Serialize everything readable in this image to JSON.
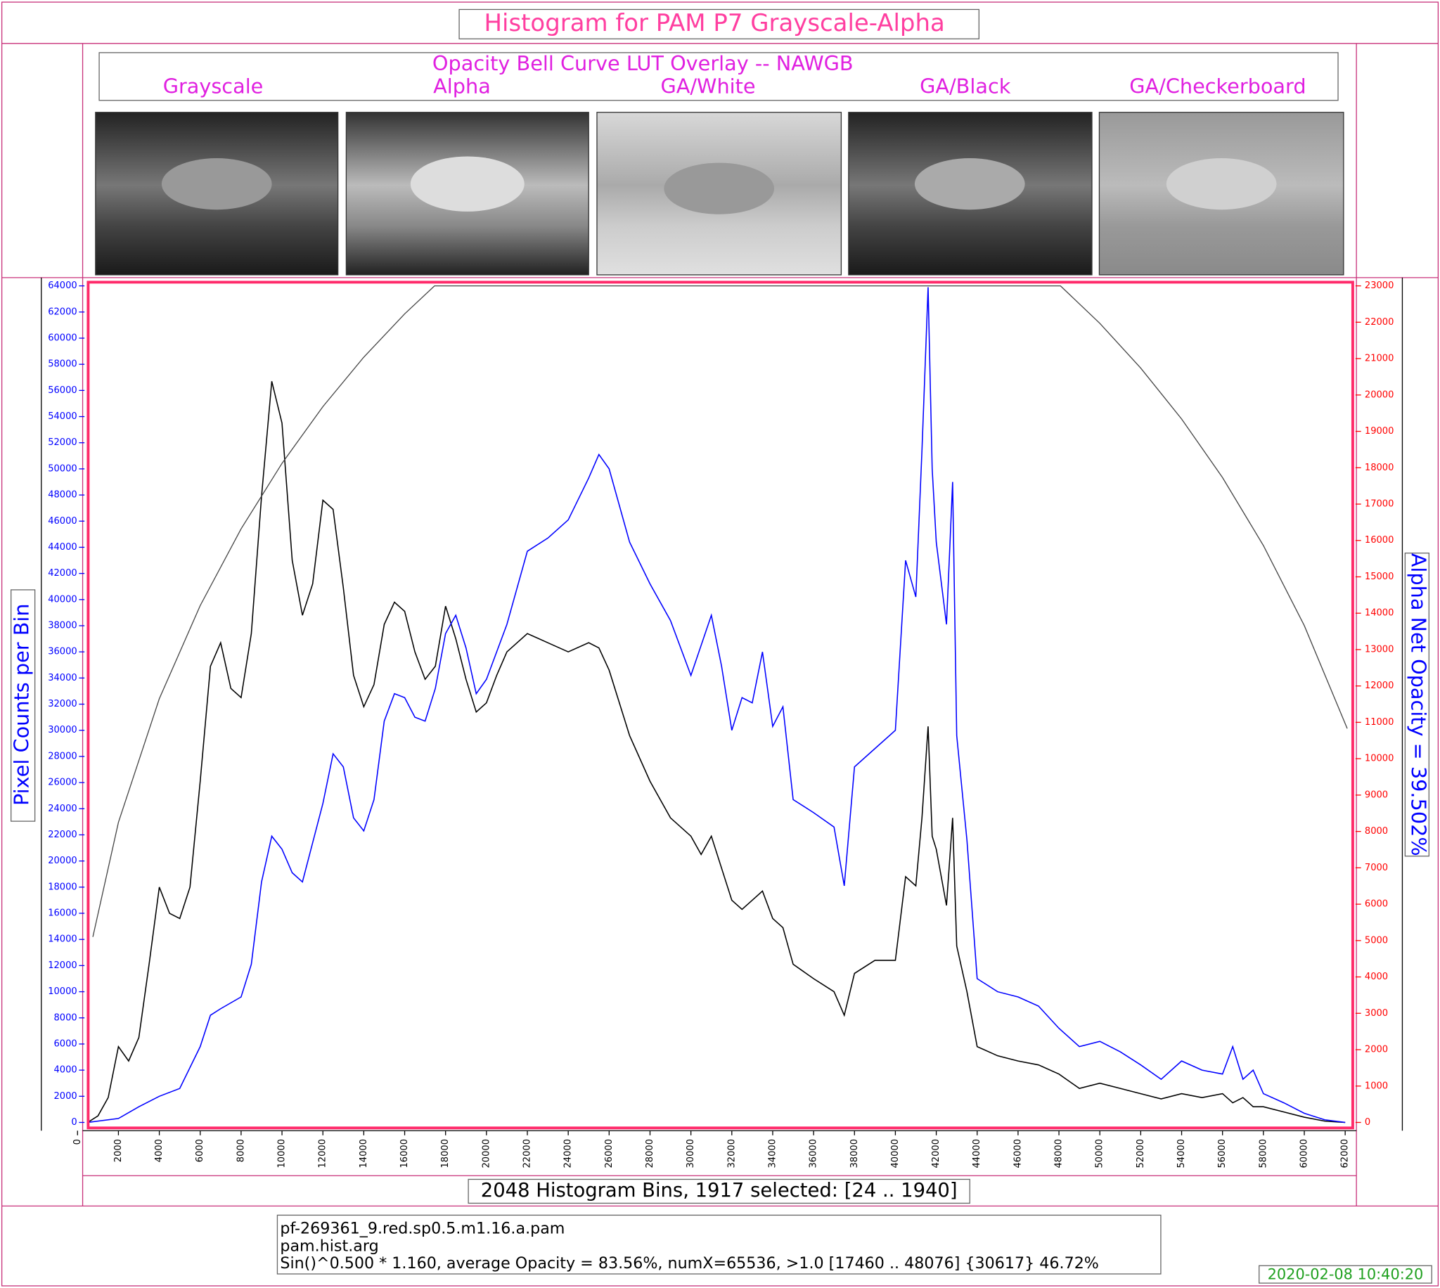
{
  "overlay": {
    "subtitle": "Opacity Bell Curve LUT Overlay -- NAWGB",
    "panels": [
      "Grayscale",
      "Alpha",
      "GA/White",
      "GA/Black",
      "GA/Checkerboard"
    ]
  },
  "info": {
    "lines": [
      "pf-269361_9.red.sp0.5.m1.16.a.pam",
      "pam.hist.arg",
      "Sin()^0.500 * 1.160, average Opacity = 83.56%, numX=65536, >1.0 [17460 .. 48076] {30617} 46.72%"
    ],
    "timestamp": "2020-02-08 10:40:20"
  },
  "chart_data": {
    "type": "line",
    "title": "Histogram for PAM P7 Grayscale-Alpha",
    "xlabel": "2048 Histogram Bins, 1917 selected: [24 .. 1940]",
    "ylabel": "Pixel Counts per Bin",
    "y2label": "Alpha Net Opacity = 39.502%",
    "xlim": [
      520,
      62370
    ],
    "ylim": [
      0,
      64000
    ],
    "y2lim": [
      0,
      23000
    ],
    "xticks": [
      0,
      2000,
      4000,
      6000,
      8000,
      10000,
      12000,
      14000,
      16000,
      18000,
      20000,
      22000,
      24000,
      26000,
      28000,
      30000,
      32000,
      34000,
      36000,
      38000,
      40000,
      42000,
      44000,
      46000,
      48000,
      50000,
      52000,
      54000,
      56000,
      58000,
      60000,
      62000
    ],
    "yticks": [
      0,
      2000,
      4000,
      6000,
      8000,
      10000,
      12000,
      14000,
      16000,
      18000,
      20000,
      22000,
      24000,
      26000,
      28000,
      30000,
      32000,
      34000,
      36000,
      38000,
      40000,
      42000,
      44000,
      46000,
      48000,
      50000,
      52000,
      54000,
      56000,
      58000,
      60000,
      62000,
      64000
    ],
    "y2ticks": [
      0,
      1000,
      2000,
      3000,
      4000,
      5000,
      6000,
      7000,
      8000,
      9000,
      10000,
      11000,
      12000,
      13000,
      14000,
      15000,
      16000,
      17000,
      18000,
      19000,
      20000,
      21000,
      22000,
      23000
    ],
    "series": [
      {
        "color": "#000000",
        "axis": "y",
        "x": [
          500,
          1000,
          1500,
          2000,
          2500,
          3000,
          3500,
          4000,
          4500,
          5000,
          5500,
          6000,
          6500,
          7000,
          7500,
          8000,
          8500,
          9000,
          9500,
          10000,
          10500,
          11000,
          11500,
          12000,
          12500,
          13000,
          13500,
          14000,
          14500,
          15000,
          15500,
          16000,
          16500,
          17000,
          17500,
          18000,
          18500,
          19000,
          19500,
          20000,
          20500,
          21000,
          22000,
          23000,
          24000,
          25000,
          25500,
          26000,
          27000,
          28000,
          29000,
          30000,
          30500,
          31000,
          32000,
          32500,
          33000,
          33500,
          34000,
          34500,
          35000,
          36000,
          37000,
          37500,
          38000,
          39000,
          40000,
          40500,
          41000,
          41300,
          41600,
          41800,
          42000,
          42500,
          42800,
          43000,
          43500,
          44000,
          45000,
          46000,
          47000,
          48000,
          49000,
          50000,
          51000,
          52000,
          53000,
          54000,
          55000,
          56000,
          56500,
          57000,
          57500,
          58000,
          59000,
          60000,
          61000,
          62000
        ],
        "values": [
          0,
          500,
          1900,
          5800,
          4700,
          6500,
          12100,
          18000,
          16000,
          15600,
          18000,
          26100,
          34900,
          36700,
          33200,
          32500,
          37400,
          47900,
          56700,
          53500,
          43000,
          38800,
          41200,
          47600,
          46900,
          40900,
          34200,
          31800,
          33500,
          38100,
          39800,
          39100,
          36000,
          33900,
          34900,
          39500,
          37000,
          33900,
          31400,
          32100,
          34200,
          36000,
          37400,
          36700,
          36000,
          36700,
          36300,
          34600,
          29600,
          26100,
          23300,
          21900,
          20500,
          21900,
          17000,
          16300,
          17000,
          17700,
          15600,
          14900,
          12100,
          11000,
          10000,
          8200,
          11400,
          12400,
          12400,
          18800,
          18100,
          23300,
          30300,
          21900,
          20900,
          16600,
          23300,
          13500,
          10000,
          5800,
          5100,
          4700,
          4400,
          3700,
          2600,
          3000,
          2600,
          2200,
          1800,
          2200,
          1900,
          2200,
          1500,
          1900,
          1200,
          1200,
          800,
          400,
          100,
          0
        ]
      },
      {
        "color": "#0000ff",
        "axis": "y",
        "x": [
          500,
          2000,
          3000,
          4000,
          5000,
          6000,
          6500,
          7000,
          8000,
          8500,
          9000,
          9500,
          10000,
          10500,
          11000,
          12000,
          12500,
          13000,
          13500,
          14000,
          14500,
          15000,
          15500,
          16000,
          16500,
          17000,
          17500,
          18000,
          18500,
          19000,
          19500,
          20000,
          21000,
          22000,
          23000,
          24000,
          25000,
          25500,
          26000,
          27000,
          28000,
          29000,
          30000,
          31000,
          31500,
          32000,
          32500,
          33000,
          33500,
          34000,
          34500,
          35000,
          36000,
          37000,
          37500,
          38000,
          39000,
          40000,
          40500,
          41000,
          41300,
          41600,
          41800,
          42000,
          42500,
          42800,
          43000,
          43500,
          44000,
          45000,
          46000,
          47000,
          48000,
          49000,
          50000,
          51000,
          52000,
          53000,
          54000,
          55000,
          56000,
          56500,
          57000,
          57500,
          58000,
          59000,
          60000,
          61000,
          62000
        ],
        "values": [
          0,
          300,
          1200,
          2000,
          2600,
          5800,
          8200,
          8700,
          9600,
          12100,
          18400,
          21900,
          20900,
          19100,
          18400,
          24400,
          28200,
          27200,
          23300,
          22300,
          24700,
          30700,
          32800,
          32500,
          31000,
          30700,
          33200,
          37400,
          38800,
          36300,
          32800,
          33900,
          38100,
          43700,
          44700,
          46100,
          49300,
          51100,
          50000,
          44400,
          41200,
          38400,
          34200,
          38800,
          34900,
          30000,
          32500,
          32100,
          36000,
          30300,
          31800,
          24700,
          23700,
          22600,
          18100,
          27200,
          28600,
          30000,
          43000,
          40200,
          51400,
          63900,
          50000,
          44400,
          38100,
          49000,
          29600,
          21600,
          11000,
          10000,
          9600,
          8900,
          7200,
          5800,
          6200,
          5400,
          4400,
          3300,
          4700,
          4000,
          3700,
          5800,
          3300,
          4000,
          2200,
          1500,
          700,
          200,
          0
        ]
      },
      {
        "color": "#444444",
        "axis": "y2",
        "x": [
          750,
          2000,
          4000,
          6000,
          8000,
          10000,
          12000,
          14000,
          16000,
          17460,
          48076,
          50000,
          52000,
          54000,
          56000,
          58000,
          60000,
          62100
        ],
        "values": [
          5100,
          8250,
          11650,
          14210,
          16320,
          18120,
          19680,
          21040,
          22230,
          23000,
          23000,
          21970,
          20740,
          19340,
          17730,
          15860,
          13660,
          10830
        ]
      }
    ]
  }
}
